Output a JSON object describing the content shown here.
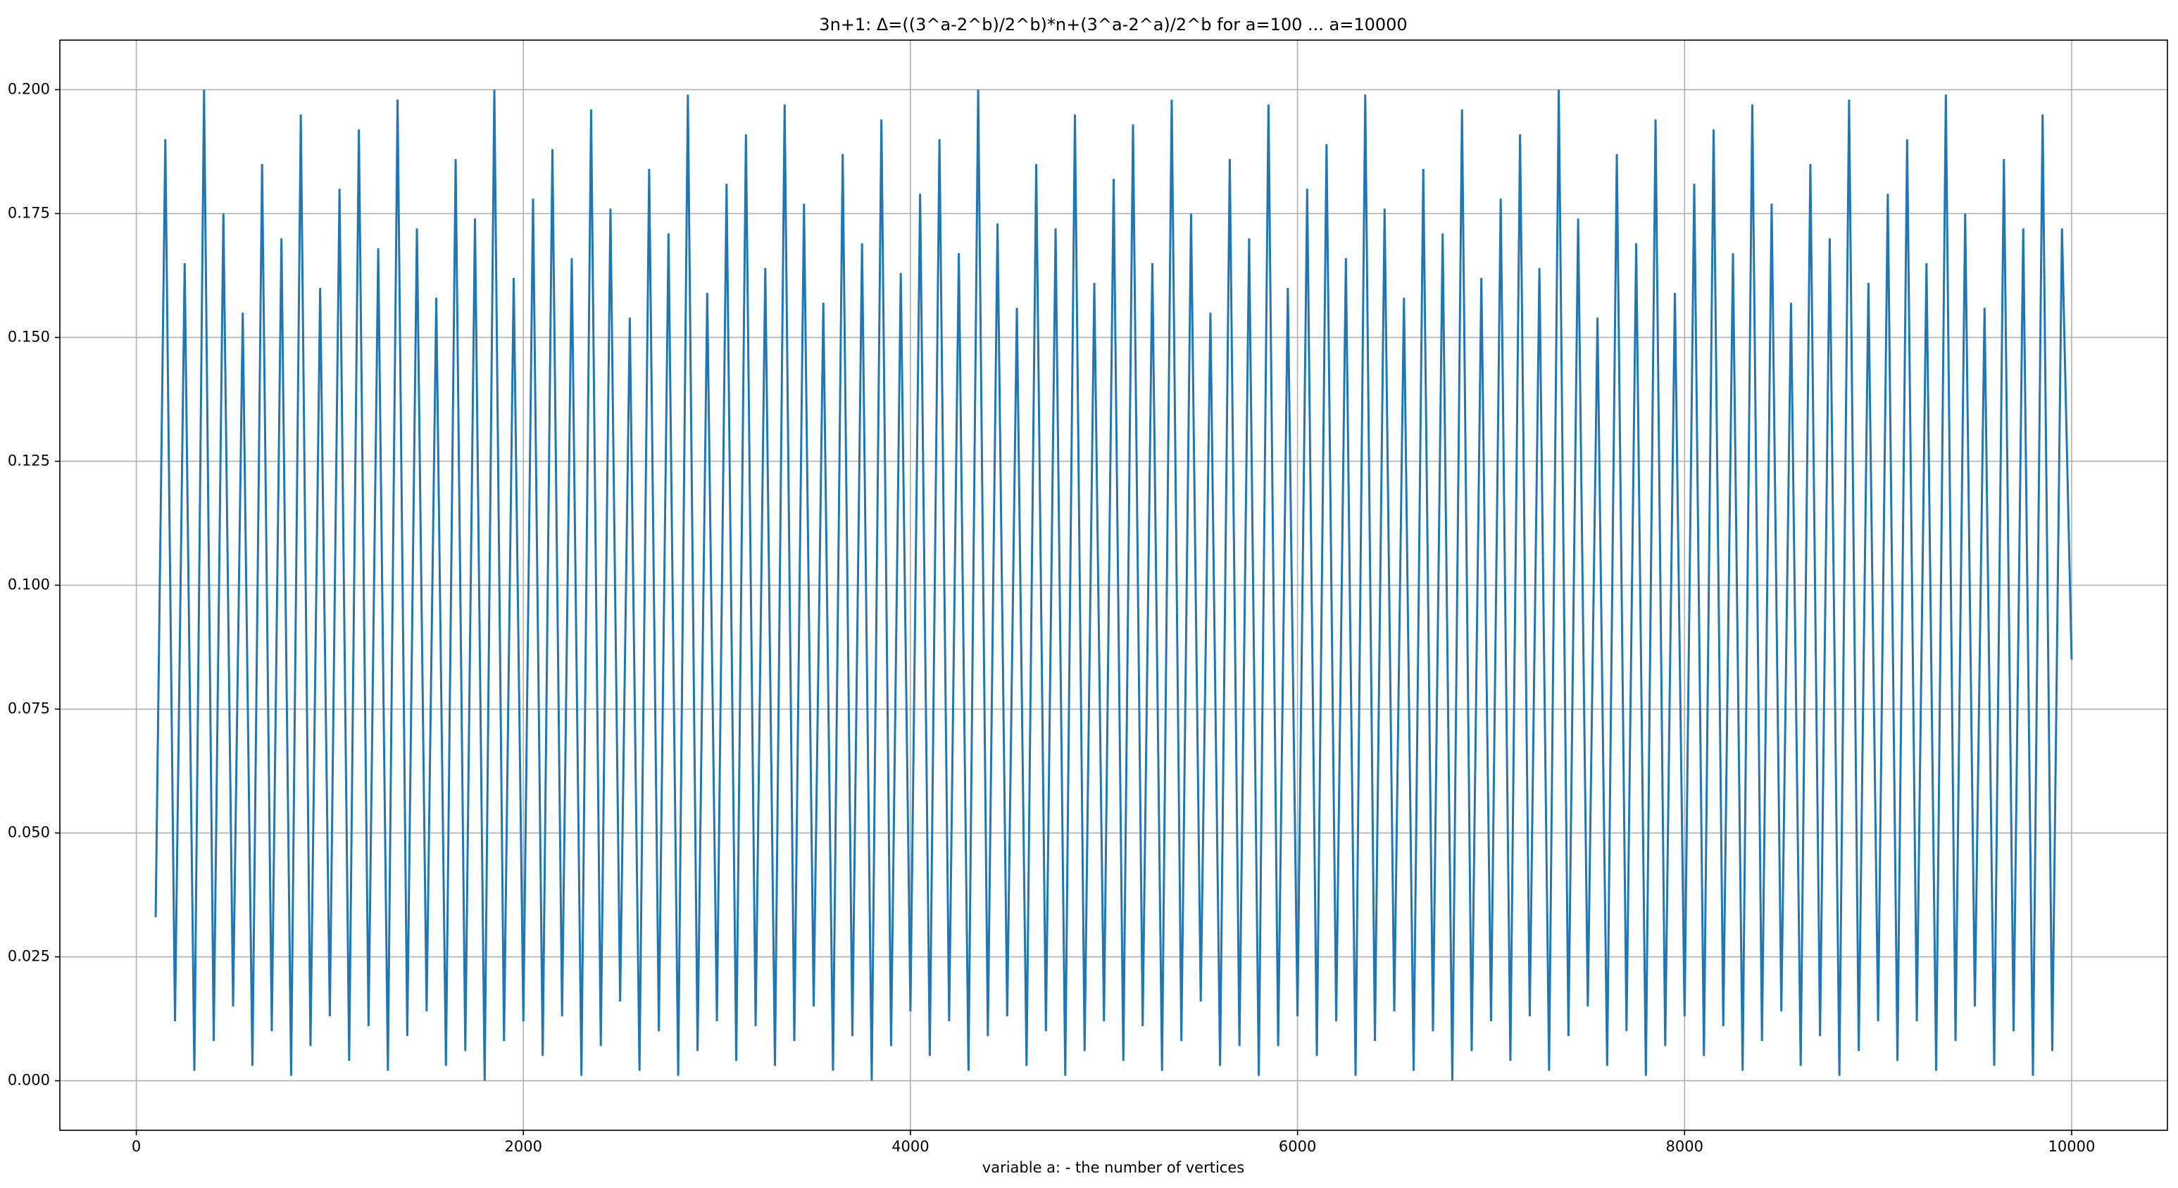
{
  "chart_data": {
    "type": "line",
    "title": "3n+1: Δ=((3^a-2^b)/2^b)*n+(3^a-2^a)/2^b for a=100 ... a=10000",
    "xlabel": "variable a: - the number of vertices",
    "color": "#1f77b4",
    "grid": true,
    "xlim": [
      -395,
      10495
    ],
    "xticks": [
      0,
      2000,
      4000,
      6000,
      8000,
      10000
    ],
    "ylim": [
      -0.01,
      0.21
    ],
    "yticks": [
      {
        "value": 0,
        "label": "0.000"
      },
      {
        "value": 0.025,
        "label": "0.025"
      },
      {
        "value": 0.05,
        "label": "0.050"
      },
      {
        "value": 0.075,
        "label": "0.075"
      },
      {
        "value": 0.1,
        "label": "0.100"
      },
      {
        "value": 0.125,
        "label": "0.125"
      },
      {
        "value": 0.15,
        "label": "0.150"
      },
      {
        "value": 0.175,
        "label": "0.175"
      },
      {
        "value": 0.2,
        "label": "0.200"
      }
    ],
    "x": [
      100,
      150,
      200,
      250,
      300,
      350,
      400,
      450,
      500,
      550,
      600,
      650,
      700,
      750,
      800,
      850,
      900,
      950,
      1000,
      1050,
      1100,
      1150,
      1200,
      1250,
      1300,
      1350,
      1400,
      1450,
      1500,
      1550,
      1600,
      1650,
      1700,
      1750,
      1800,
      1850,
      1900,
      1950,
      2000,
      2050,
      2100,
      2150,
      2200,
      2250,
      2300,
      2350,
      2400,
      2450,
      2500,
      2550,
      2600,
      2650,
      2700,
      2750,
      2800,
      2850,
      2900,
      2950,
      3000,
      3050,
      3100,
      3150,
      3200,
      3250,
      3300,
      3350,
      3400,
      3450,
      3500,
      3550,
      3600,
      3650,
      3700,
      3750,
      3800,
      3850,
      3900,
      3950,
      4000,
      4050,
      4100,
      4150,
      4200,
      4250,
      4300,
      4350,
      4400,
      4450,
      4500,
      4550,
      4600,
      4650,
      4700,
      4750,
      4800,
      4850,
      4900,
      4950,
      5000,
      5050,
      5100,
      5150,
      5200,
      5250,
      5300,
      5350,
      5400,
      5450,
      5500,
      5550,
      5600,
      5650,
      5700,
      5750,
      5800,
      5850,
      5900,
      5950,
      6000,
      6050,
      6100,
      6150,
      6200,
      6250,
      6300,
      6350,
      6400,
      6450,
      6500,
      6550,
      6600,
      6650,
      6700,
      6750,
      6800,
      6850,
      6900,
      6950,
      7000,
      7050,
      7100,
      7150,
      7200,
      7250,
      7300,
      7350,
      7400,
      7450,
      7500,
      7550,
      7600,
      7650,
      7700,
      7750,
      7800,
      7850,
      7900,
      7950,
      8000,
      8050,
      8100,
      8150,
      8200,
      8250,
      8300,
      8350,
      8400,
      8450,
      8500,
      8550,
      8600,
      8650,
      8700,
      8750,
      8800,
      8850,
      8900,
      8950,
      9000,
      9050,
      9100,
      9150,
      9200,
      9250,
      9300,
      9350,
      9400,
      9450,
      9500,
      9550,
      9600,
      9650,
      9700,
      9750,
      9800,
      9850,
      9900,
      9950,
      10000
    ],
    "values": [
      0.033,
      0.19,
      0.012,
      0.165,
      0.002,
      0.2,
      0.008,
      0.175,
      0.015,
      0.155,
      0.003,
      0.185,
      0.01,
      0.17,
      0.001,
      0.195,
      0.007,
      0.16,
      0.013,
      0.18,
      0.004,
      0.192,
      0.011,
      0.168,
      0.002,
      0.198,
      0.009,
      0.172,
      0.014,
      0.158,
      0.003,
      0.186,
      0.006,
      0.174,
      0.0,
      0.2,
      0.008,
      0.162,
      0.012,
      0.178,
      0.005,
      0.188,
      0.013,
      0.166,
      0.001,
      0.196,
      0.007,
      0.176,
      0.016,
      0.154,
      0.002,
      0.184,
      0.01,
      0.171,
      0.001,
      0.199,
      0.006,
      0.159,
      0.012,
      0.181,
      0.004,
      0.191,
      0.011,
      0.164,
      0.003,
      0.197,
      0.008,
      0.177,
      0.015,
      0.157,
      0.002,
      0.187,
      0.009,
      0.169,
      0.0,
      0.194,
      0.007,
      0.163,
      0.014,
      0.179,
      0.005,
      0.19,
      0.012,
      0.167,
      0.002,
      0.2,
      0.009,
      0.173,
      0.013,
      0.156,
      0.003,
      0.185,
      0.01,
      0.172,
      0.001,
      0.195,
      0.006,
      0.161,
      0.012,
      0.182,
      0.004,
      0.193,
      0.011,
      0.165,
      0.002,
      0.198,
      0.008,
      0.175,
      0.016,
      0.155,
      0.003,
      0.186,
      0.007,
      0.17,
      0.001,
      0.197,
      0.007,
      0.16,
      0.013,
      0.18,
      0.005,
      0.189,
      0.012,
      0.166,
      0.001,
      0.199,
      0.008,
      0.176,
      0.014,
      0.158,
      0.002,
      0.184,
      0.01,
      0.171,
      0.0,
      0.196,
      0.006,
      0.162,
      0.012,
      0.178,
      0.004,
      0.191,
      0.013,
      0.164,
      0.002,
      0.2,
      0.009,
      0.174,
      0.015,
      0.154,
      0.003,
      0.187,
      0.01,
      0.169,
      0.001,
      0.194,
      0.007,
      0.159,
      0.013,
      0.181,
      0.005,
      0.192,
      0.011,
      0.167,
      0.002,
      0.197,
      0.008,
      0.177,
      0.014,
      0.157,
      0.003,
      0.185,
      0.009,
      0.17,
      0.001,
      0.198,
      0.006,
      0.161,
      0.012,
      0.179,
      0.004,
      0.19,
      0.012,
      0.165,
      0.002,
      0.199,
      0.008,
      0.175,
      0.015,
      0.156,
      0.003,
      0.186,
      0.01,
      0.172,
      0.001,
      0.195,
      0.006,
      0.172,
      0.085
    ]
  }
}
